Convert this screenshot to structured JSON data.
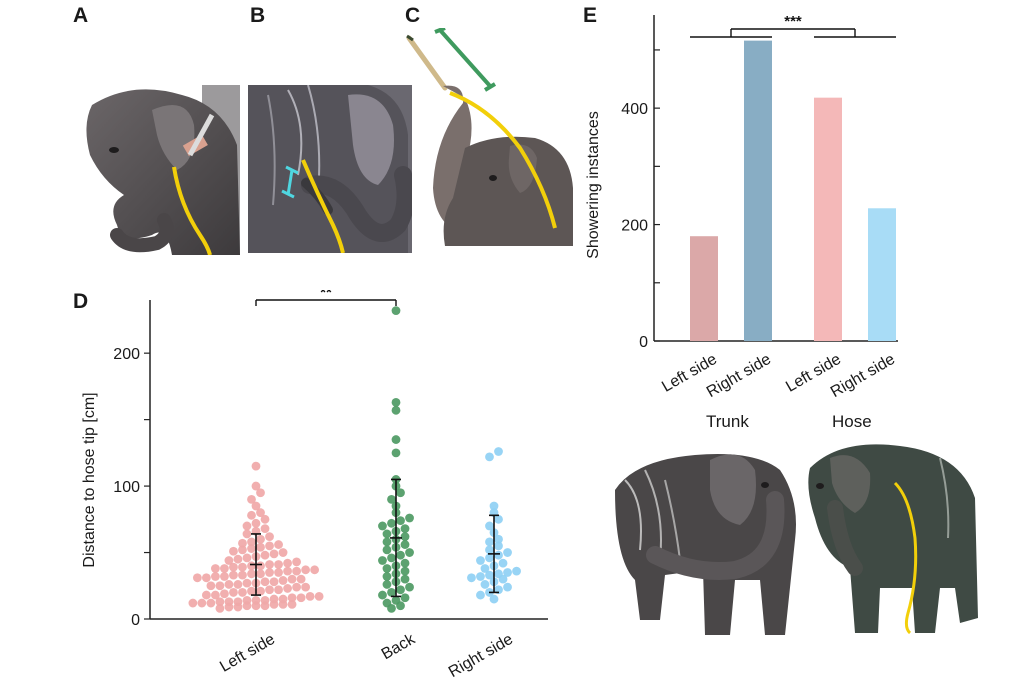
{
  "panels": {
    "a": {
      "letter": "A"
    },
    "b": {
      "letter": "B"
    },
    "c": {
      "letter": "C"
    },
    "d": {
      "letter": "D"
    },
    "e": {
      "letter": "E"
    }
  },
  "chart_data": [
    {
      "type": "scatter",
      "panel": "D",
      "title": "",
      "ylabel": "Distance to hose tip [cm]",
      "xlabel": "",
      "ylim": [
        0,
        240
      ],
      "yticks": [
        0,
        100,
        200
      ],
      "categories": [
        "Left side",
        "Back",
        "Right side"
      ],
      "colors": [
        "#f0a8a8",
        "#4e9a64",
        "#8fd0f4"
      ],
      "summary": [
        {
          "category": "Left side",
          "mean": 41,
          "sd_low": 18,
          "sd_high": 64
        },
        {
          "category": "Back",
          "mean": 61,
          "sd_low": 17,
          "sd_high": 105
        },
        {
          "category": "Right side",
          "mean": 49,
          "sd_low": 20,
          "sd_high": 78
        }
      ],
      "points": {
        "Left side": [
          8,
          9,
          9,
          10,
          10,
          10,
          11,
          11,
          11,
          12,
          12,
          12,
          13,
          13,
          13,
          14,
          14,
          14,
          15,
          15,
          16,
          16,
          17,
          17,
          18,
          18,
          19,
          20,
          20,
          21,
          21,
          22,
          22,
          23,
          24,
          24,
          25,
          25,
          26,
          26,
          27,
          27,
          28,
          28,
          29,
          30,
          30,
          31,
          31,
          32,
          32,
          33,
          33,
          34,
          34,
          35,
          35,
          36,
          36,
          37,
          37,
          38,
          38,
          39,
          39,
          40,
          40,
          41,
          41,
          42,
          43,
          44,
          45,
          46,
          47,
          48,
          49,
          50,
          51,
          52,
          53,
          54,
          55,
          56,
          57,
          58,
          60,
          62,
          64,
          66,
          68,
          70,
          72,
          75,
          78,
          80,
          85,
          90,
          95,
          100,
          115
        ],
        "Back": [
          8,
          10,
          12,
          14,
          16,
          18,
          20,
          22,
          24,
          26,
          28,
          30,
          32,
          34,
          36,
          38,
          40,
          42,
          44,
          46,
          48,
          50,
          52,
          54,
          56,
          58,
          60,
          62,
          64,
          66,
          68,
          70,
          72,
          74,
          76,
          80,
          85,
          90,
          95,
          100,
          105,
          125,
          135,
          157,
          163,
          232
        ],
        "Right side": [
          15,
          18,
          20,
          22,
          24,
          26,
          28,
          30,
          31,
          32,
          33,
          34,
          35,
          36,
          38,
          40,
          42,
          44,
          46,
          48,
          50,
          52,
          55,
          58,
          60,
          65,
          70,
          75,
          80,
          85,
          122,
          126
        ]
      },
      "annotations": [
        {
          "text": "**",
          "between": [
            "Left side",
            "Back"
          ]
        }
      ]
    },
    {
      "type": "bar",
      "panel": "E",
      "title": "",
      "ylabel": "Showering instances",
      "xlabel": "",
      "ylim": [
        0,
        560
      ],
      "yticks": [
        0,
        200,
        400
      ],
      "groups": [
        "Trunk",
        "Hose"
      ],
      "categories": [
        "Left side",
        "Right side",
        "Left side",
        "Right side"
      ],
      "values": [
        180,
        516,
        418,
        228
      ],
      "colors": [
        "#dba8a8",
        "#88adc4",
        "#f4b8b8",
        "#a8dcf6"
      ],
      "annotations": [
        {
          "text": "***",
          "between": [
            "Trunk",
            "Hose"
          ]
        }
      ]
    }
  ]
}
